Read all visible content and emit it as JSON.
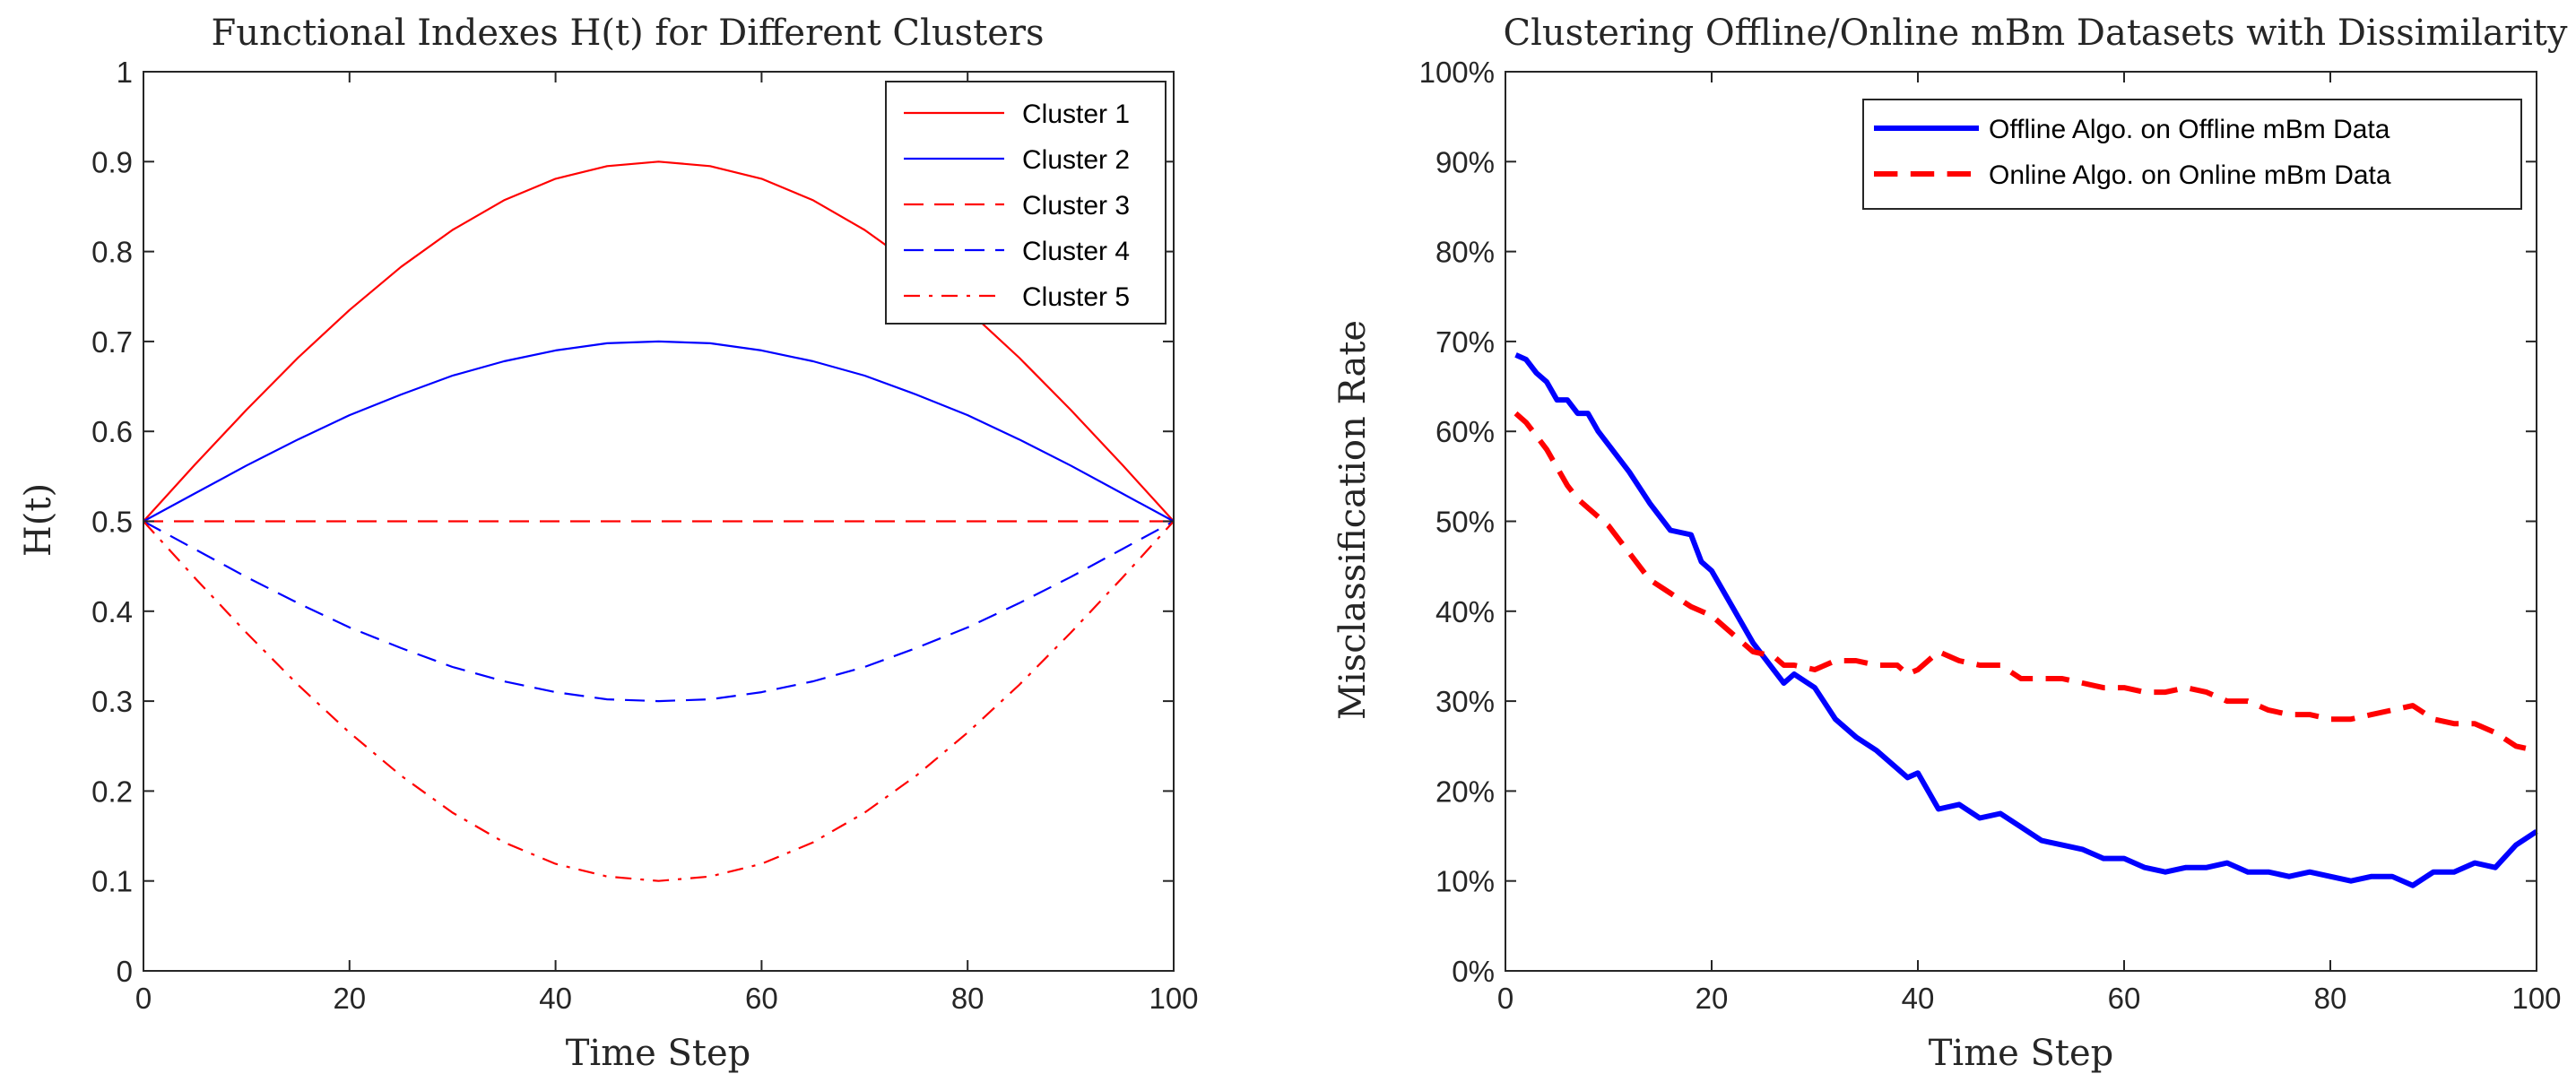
{
  "colors": {
    "red": "#ff0000",
    "blue": "#0000ff",
    "axis": "#262626",
    "background": "#ffffff"
  },
  "chart_data": [
    {
      "type": "line",
      "title": "Functional Indexes H(t) for Different Clusters",
      "xlabel": "Time Step",
      "ylabel": "H(t)",
      "xlim": [
        0,
        100
      ],
      "ylim": [
        0,
        1
      ],
      "xticks": [
        0,
        20,
        40,
        60,
        80,
        100
      ],
      "xtick_labels": [
        "0",
        "20",
        "40",
        "60",
        "80",
        "100"
      ],
      "yticks": [
        0,
        0.1,
        0.2,
        0.3,
        0.4,
        0.5,
        0.6,
        0.7,
        0.8,
        0.9,
        1
      ],
      "ytick_labels": [
        "0",
        "0.1",
        "0.2",
        "0.3",
        "0.4",
        "0.5",
        "0.6",
        "0.7",
        "0.8",
        "0.9",
        "1"
      ],
      "grid": false,
      "legend_position": "top-right",
      "x": [
        0,
        5,
        10,
        15,
        20,
        25,
        30,
        35,
        40,
        45,
        50,
        55,
        60,
        65,
        70,
        75,
        80,
        85,
        90,
        95,
        100
      ],
      "series": [
        {
          "name": "Cluster 1",
          "color": "#ff0000",
          "dash": "solid",
          "values": [
            0.5,
            0.563,
            0.624,
            0.682,
            0.735,
            0.783,
            0.824,
            0.857,
            0.881,
            0.895,
            0.9,
            0.895,
            0.881,
            0.857,
            0.824,
            0.783,
            0.735,
            0.682,
            0.624,
            0.563,
            0.5
          ]
        },
        {
          "name": "Cluster 2",
          "color": "#0000ff",
          "dash": "solid",
          "values": [
            0.5,
            0.531,
            0.562,
            0.591,
            0.618,
            0.641,
            0.662,
            0.678,
            0.69,
            0.698,
            0.7,
            0.698,
            0.69,
            0.678,
            0.662,
            0.641,
            0.618,
            0.591,
            0.562,
            0.531,
            0.5
          ]
        },
        {
          "name": "Cluster 3",
          "color": "#ff0000",
          "dash": "dashed",
          "values": [
            0.5,
            0.5,
            0.5,
            0.5,
            0.5,
            0.5,
            0.5,
            0.5,
            0.5,
            0.5,
            0.5,
            0.5,
            0.5,
            0.5,
            0.5,
            0.5,
            0.5,
            0.5,
            0.5,
            0.5,
            0.5
          ]
        },
        {
          "name": "Cluster 4",
          "color": "#0000ff",
          "dash": "dashed",
          "values": [
            0.5,
            0.469,
            0.438,
            0.409,
            0.382,
            0.359,
            0.338,
            0.322,
            0.31,
            0.302,
            0.3,
            0.302,
            0.31,
            0.322,
            0.338,
            0.359,
            0.382,
            0.409,
            0.438,
            0.469,
            0.5
          ]
        },
        {
          "name": "Cluster 5",
          "color": "#ff0000",
          "dash": "dashdot",
          "values": [
            0.5,
            0.437,
            0.376,
            0.318,
            0.265,
            0.217,
            0.176,
            0.143,
            0.119,
            0.105,
            0.1,
            0.105,
            0.119,
            0.143,
            0.176,
            0.217,
            0.265,
            0.318,
            0.376,
            0.437,
            0.5
          ]
        }
      ]
    },
    {
      "type": "line",
      "title": "Clustering Offline/Online mBm Datasets with Dissimilarity",
      "xlabel": "Time Step",
      "ylabel": "Misclassification Rate",
      "xlim": [
        0,
        100
      ],
      "ylim": [
        0,
        100
      ],
      "xticks": [
        0,
        20,
        40,
        60,
        80,
        100
      ],
      "xtick_labels": [
        "0",
        "20",
        "40",
        "60",
        "80",
        "100"
      ],
      "yticks": [
        0,
        10,
        20,
        30,
        40,
        50,
        60,
        70,
        80,
        90,
        100
      ],
      "ytick_labels": [
        "0%",
        "10%",
        "20%",
        "30%",
        "40%",
        "50%",
        "60%",
        "70%",
        "80%",
        "90%",
        "100%"
      ],
      "grid": false,
      "legend_position": "top-right",
      "x": [
        1,
        2,
        3,
        4,
        5,
        6,
        7,
        8,
        9,
        10,
        12,
        14,
        16,
        18,
        19,
        20,
        22,
        24,
        26,
        27,
        28,
        30,
        32,
        34,
        36,
        38,
        39,
        40,
        42,
        44,
        46,
        48,
        50,
        52,
        54,
        56,
        58,
        60,
        62,
        64,
        66,
        68,
        70,
        72,
        74,
        76,
        78,
        80,
        82,
        84,
        86,
        88,
        90,
        92,
        94,
        96,
        98,
        100
      ],
      "series": [
        {
          "name": "Offline Algo. on Offline mBm Data",
          "color": "#0000ff",
          "dash": "solid",
          "values": [
            68.5,
            68,
            66.5,
            65.5,
            63.5,
            63.5,
            62,
            62,
            60,
            58.5,
            55.5,
            52,
            49,
            48.5,
            45.5,
            44.5,
            40.5,
            36.5,
            33.5,
            32,
            33,
            31.5,
            28,
            26,
            24.5,
            22.5,
            21.5,
            22,
            18,
            18.5,
            17,
            17.5,
            16,
            14.5,
            14,
            13.5,
            12.5,
            12.5,
            11.5,
            11,
            11.5,
            11.5,
            12,
            11,
            11,
            10.5,
            11,
            10.5,
            10,
            10.5,
            10.5,
            9.5,
            11,
            11,
            12,
            11.5,
            14,
            15.5
          ]
        },
        {
          "name": "Online Algo. on Online mBm Data",
          "color": "#ff0000",
          "dash": "dashed",
          "values": [
            62,
            61,
            59.5,
            58,
            56,
            54,
            52.5,
            51.5,
            50.5,
            49.5,
            46.5,
            43.5,
            42,
            40.5,
            40,
            39.5,
            37.5,
            35.5,
            35,
            34,
            34,
            33.5,
            34.5,
            34.5,
            34,
            34,
            33,
            33.5,
            35.5,
            34.5,
            34,
            34,
            32.5,
            32.5,
            32.5,
            32,
            31.5,
            31.5,
            31,
            31,
            31.5,
            31,
            30,
            30,
            29,
            28.5,
            28.5,
            28,
            28,
            28.5,
            29,
            29.5,
            28,
            27.5,
            27.5,
            26.5,
            25,
            24.5
          ]
        }
      ]
    }
  ]
}
